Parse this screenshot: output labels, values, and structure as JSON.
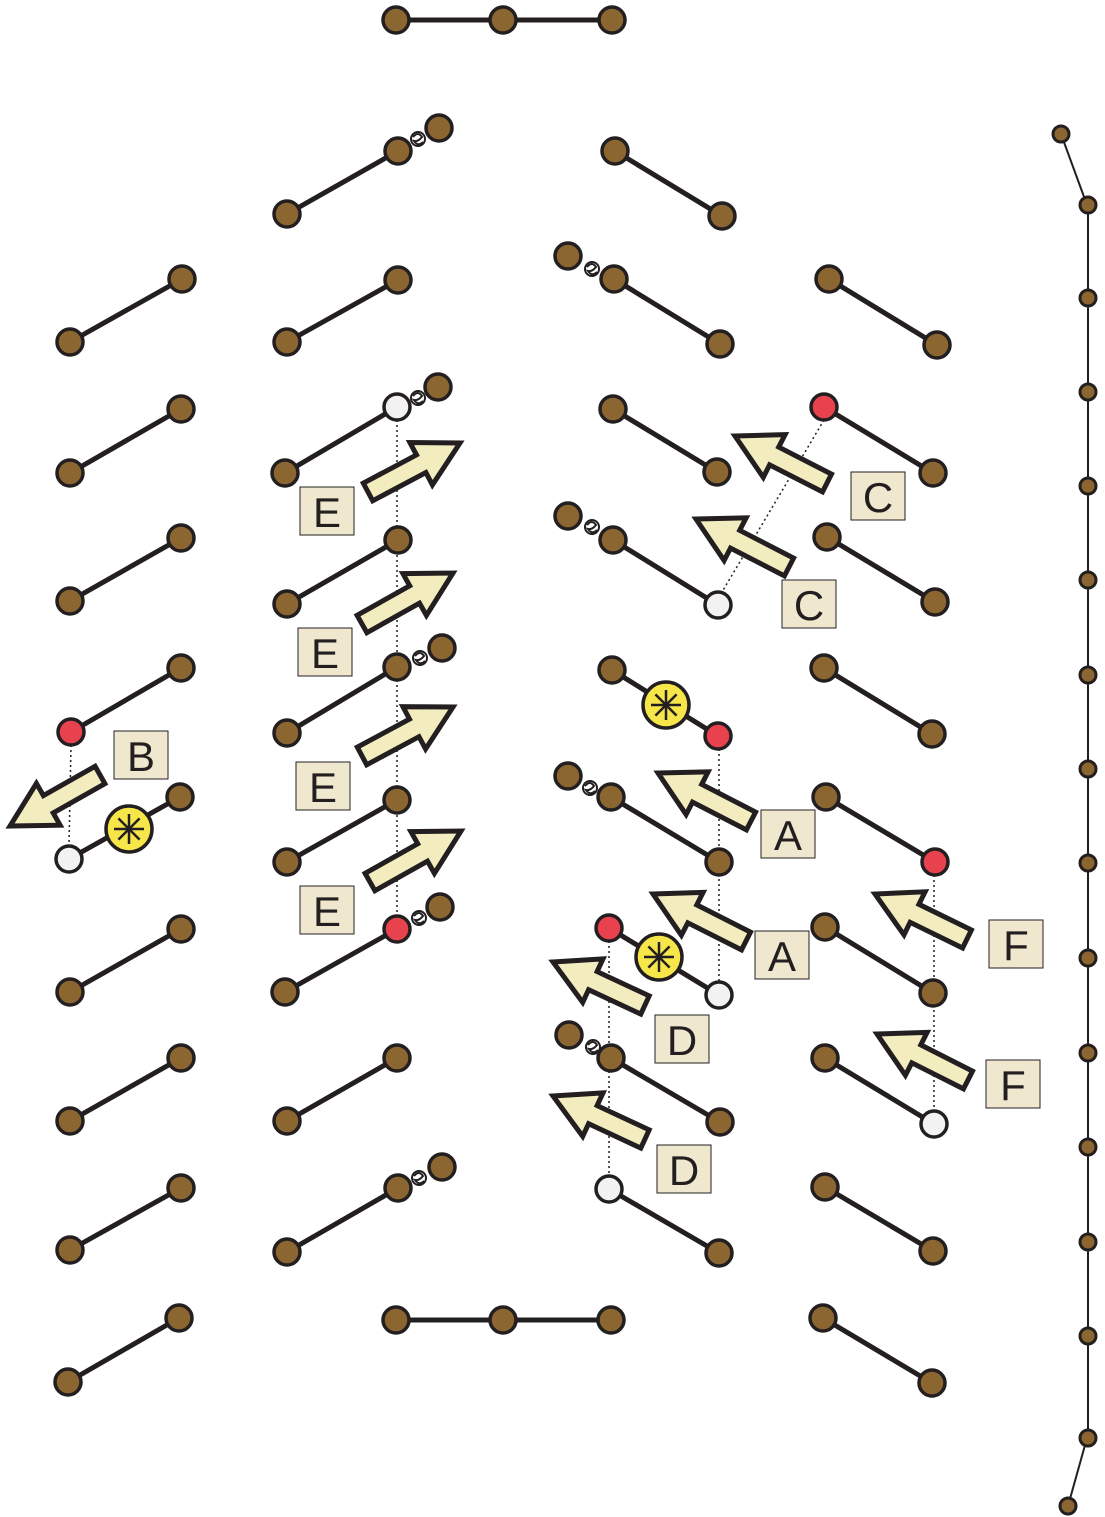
{
  "colors": {
    "atom": "#8b6631",
    "bond": "#231f20",
    "highlight_atom": "#e8424f",
    "vacancy": "#f2f2f2",
    "arrow_fill": "#f3ecbe",
    "label_box": "#efe8cf",
    "star_fill": "#f7e64a",
    "background": "#ffffff"
  },
  "labels": [
    {
      "id": "B",
      "text": "B"
    },
    {
      "id": "E1",
      "text": "E"
    },
    {
      "id": "E2",
      "text": "E"
    },
    {
      "id": "E3",
      "text": "E"
    },
    {
      "id": "E4",
      "text": "E"
    },
    {
      "id": "C1",
      "text": "C"
    },
    {
      "id": "C2",
      "text": "C"
    },
    {
      "id": "A1",
      "text": "A"
    },
    {
      "id": "A2",
      "text": "A"
    },
    {
      "id": "D1",
      "text": "D"
    },
    {
      "id": "D2",
      "text": "D"
    },
    {
      "id": "F1",
      "text": "F"
    },
    {
      "id": "F2",
      "text": "F"
    }
  ],
  "legend_icons": [
    "swirl-defect-icon",
    "star-defect-icon",
    "arrow-icon"
  ]
}
